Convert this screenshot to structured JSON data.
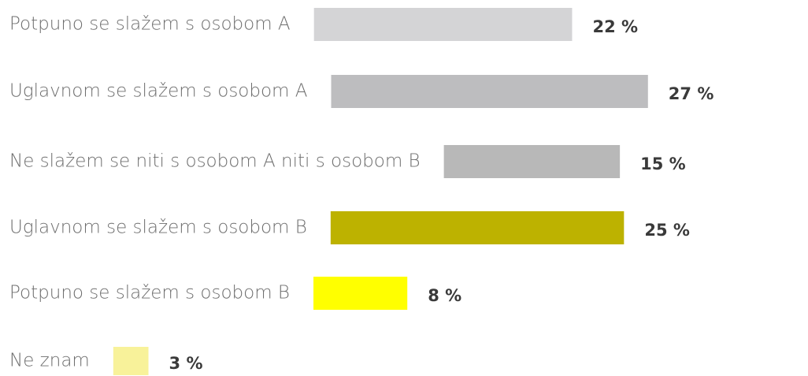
{
  "chart_data": {
    "type": "hbar",
    "categories": [
      "Potpuno se slažem s osobom A",
      "Uglavnom se slažem s osobom A",
      "Ne slažem se niti s osobom A niti s osobom B",
      "Uglavnom se slažem s osobom B",
      "Potpuno se slažem s osobom B",
      "Ne znam"
    ],
    "values": [
      22,
      27,
      15,
      25,
      8,
      3
    ],
    "value_labels": [
      "22 %",
      "27 %",
      "15 %",
      "25 %",
      "8 %",
      "3 %"
    ],
    "colors": [
      "#d4d4d6",
      "#bdbdbf",
      "#b8b8b8",
      "#bdb200",
      "#ffff00",
      "#f8f29a"
    ]
  }
}
